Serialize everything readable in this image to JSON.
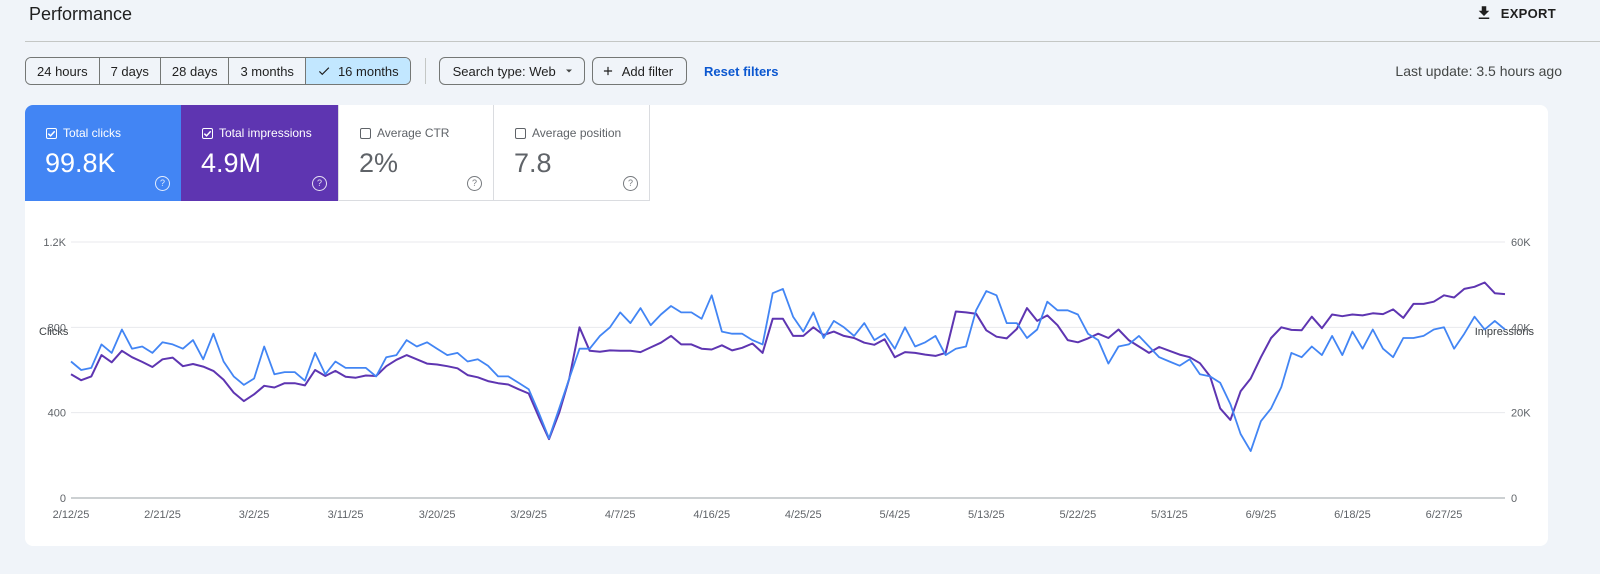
{
  "header": {
    "title": "Performance",
    "export_label": "EXPORT",
    "export_icon": "download-icon"
  },
  "filters": {
    "date_ranges": [
      "24 hours",
      "7 days",
      "28 days",
      "3 months",
      "16 months"
    ],
    "selected_range": "16 months",
    "search_type": "Search type: Web",
    "add_filter": "Add filter",
    "reset": "Reset filters",
    "last_update": "Last update: 3.5 hours ago"
  },
  "metrics": {
    "clicks": {
      "label": "Total clicks",
      "value": "99.8K",
      "checked": true,
      "color": "#4285f4"
    },
    "impressions": {
      "label": "Total impressions",
      "value": "4.9M",
      "checked": true,
      "color": "#5e35b1"
    },
    "ctr": {
      "label": "Average CTR",
      "value": "2%",
      "checked": false
    },
    "position": {
      "label": "Average position",
      "value": "7.8",
      "checked": false
    }
  },
  "chart_data": {
    "type": "line",
    "left_axis_title": "Clicks",
    "right_axis_title": "Impressions",
    "left_ticks": [
      "0",
      "400",
      "800",
      "1.2K"
    ],
    "right_ticks": [
      "0",
      "20K",
      "40K",
      "60K"
    ],
    "ylim_left": [
      0,
      1200
    ],
    "ylim_right": [
      0,
      60000
    ],
    "x_tick_labels": [
      "2/12/25",
      "2/21/25",
      "3/2/25",
      "3/11/25",
      "3/20/25",
      "3/29/25",
      "4/7/25",
      "4/16/25",
      "4/25/25",
      "5/4/25",
      "5/13/25",
      "5/22/25",
      "5/31/25",
      "6/9/25",
      "6/18/25",
      "6/27/25"
    ],
    "start_date": "2025-02-12",
    "series": [
      {
        "name": "Clicks",
        "color": "#4285f4",
        "axis": "left",
        "values": [
          640,
          600,
          610,
          720,
          680,
          790,
          700,
          710,
          680,
          730,
          720,
          700,
          740,
          650,
          770,
          640,
          570,
          530,
          560,
          710,
          580,
          590,
          590,
          550,
          680,
          580,
          640,
          610,
          610,
          610,
          570,
          660,
          670,
          740,
          710,
          730,
          700,
          670,
          680,
          640,
          650,
          620,
          570,
          570,
          540,
          510,
          400,
          280,
          420,
          560,
          700,
          700,
          760,
          800,
          870,
          820,
          890,
          810,
          860,
          900,
          870,
          870,
          840,
          950,
          780,
          770,
          770,
          740,
          720,
          960,
          980,
          850,
          780,
          870,
          750,
          830,
          800,
          760,
          820,
          740,
          770,
          700,
          800,
          710,
          730,
          760,
          670,
          700,
          710,
          880,
          970,
          950,
          820,
          820,
          750,
          790,
          920,
          880,
          880,
          860,
          770,
          740,
          630,
          710,
          720,
          760,
          710,
          660,
          640,
          620,
          650,
          580,
          570,
          540,
          440,
          300,
          220,
          360,
          420,
          520,
          680,
          660,
          710,
          670,
          760,
          670,
          780,
          700,
          790,
          700,
          660,
          750,
          750,
          760,
          790,
          800,
          700,
          770,
          850,
          790,
          830,
          790
        ]
      },
      {
        "name": "Impressions",
        "color": "#5e35b1",
        "axis": "right",
        "values": [
          29000,
          27600,
          28500,
          33500,
          31800,
          34500,
          33000,
          31900,
          30700,
          32500,
          32900,
          30900,
          31400,
          30800,
          29800,
          27700,
          24700,
          22700,
          24300,
          26300,
          25900,
          26900,
          26900,
          26400,
          30000,
          28600,
          29800,
          28400,
          28200,
          28700,
          28600,
          30900,
          32400,
          33500,
          32500,
          31500,
          31300,
          30900,
          30400,
          28800,
          28300,
          27400,
          26900,
          26600,
          25500,
          24500,
          19000,
          13800,
          20000,
          28000,
          40000,
          34500,
          34300,
          34600,
          34500,
          34500,
          34200,
          35300,
          36400,
          38000,
          36000,
          36000,
          35000,
          34800,
          35800,
          34600,
          35200,
          36200,
          34000,
          42000,
          42000,
          38000,
          38000,
          40000,
          38200,
          39000,
          38000,
          37500,
          36400,
          35900,
          37200,
          33000,
          34200,
          34000,
          33600,
          33300,
          34000,
          43700,
          43500,
          43200,
          39300,
          37800,
          37400,
          39600,
          44500,
          41500,
          42800,
          40500,
          37000,
          36500,
          37400,
          38500,
          37500,
          39500,
          37000,
          35500,
          34000,
          35400,
          34500,
          33600,
          33000,
          31600,
          28500,
          21000,
          18300,
          25000,
          28000,
          33000,
          37500,
          40000,
          39400,
          39300,
          42500,
          39800,
          43000,
          42600,
          43000,
          42800,
          43300,
          43100,
          44200,
          42200,
          45500,
          45500,
          46000,
          47500,
          47000,
          49000,
          49500,
          50500,
          48000,
          47800
        ]
      }
    ]
  }
}
